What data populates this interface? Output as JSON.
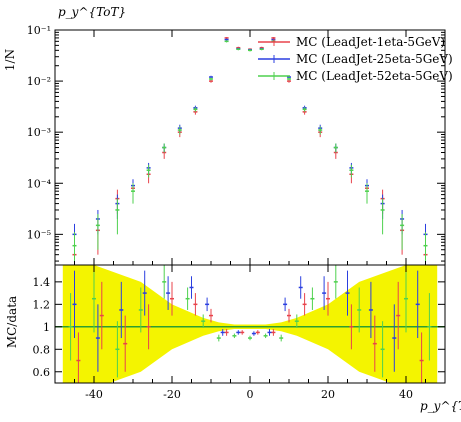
{
  "chart_data": [
    {
      "type": "scatter",
      "title": "p_y^{ToT}",
      "xlabel": "",
      "ylabel": "1/N",
      "xlim": [
        -50,
        50
      ],
      "ylim_log10": [
        -5.6,
        -1
      ],
      "y_scale": "log",
      "yticks": [
        {
          "label": "10⁻⁵",
          "value": 1e-05
        },
        {
          "label": "10⁻⁴",
          "value": 0.0001
        },
        {
          "label": "10⁻³",
          "value": 0.001
        },
        {
          "label": "10⁻²",
          "value": 0.01
        },
        {
          "label": "10⁻¹",
          "value": 0.1
        }
      ],
      "legend_position": "top-right",
      "series": [
        {
          "name": "MC (LeadJet-1eta-5GeV)",
          "color": "#e8434b",
          "x": [
            -45,
            -39,
            -34,
            -30,
            -26,
            -22,
            -18,
            -14,
            -10,
            -6,
            -3,
            0,
            3,
            6,
            10,
            14,
            18,
            22,
            26,
            30,
            34,
            39,
            45
          ],
          "y": [
            4e-06,
            1.2e-05,
            5e-05,
            8e-05,
            0.00015,
            0.0004,
            0.001,
            0.0025,
            0.01,
            0.07,
            0.045,
            0.042,
            0.045,
            0.07,
            0.01,
            0.0025,
            0.001,
            0.0004,
            0.00015,
            8e-05,
            5e-05,
            1.2e-05,
            4e-06
          ],
          "err": [
            3e-06,
            8e-06,
            2.5e-05,
            3e-05,
            5e-05,
            0.0001,
            0.0002,
            0.0003,
            0.0007,
            0.003,
            0.002,
            0.002,
            0.002,
            0.003,
            0.0007,
            0.0003,
            0.0002,
            0.0001,
            5e-05,
            3e-05,
            2.5e-05,
            8e-06,
            3e-06
          ]
        },
        {
          "name": "MC (LeadJet-25eta-5GeV)",
          "color": "#2b3fe0",
          "x": [
            -45,
            -39,
            -34,
            -30,
            -26,
            -22,
            -18,
            -14,
            -10,
            -6,
            -3,
            0,
            3,
            6,
            10,
            14,
            18,
            22,
            26,
            30,
            34,
            39,
            45
          ],
          "y": [
            1e-05,
            2e-05,
            4e-05,
            9e-05,
            0.0002,
            0.0005,
            0.0012,
            0.003,
            0.012,
            0.065,
            0.043,
            0.041,
            0.043,
            0.065,
            0.012,
            0.003,
            0.0012,
            0.0005,
            0.0002,
            9e-05,
            4e-05,
            2e-05,
            1e-05
          ],
          "err": [
            6e-06,
            1e-05,
            2e-05,
            3e-05,
            5e-05,
            0.0001,
            0.0002,
            0.0003,
            0.0007,
            0.003,
            0.002,
            0.002,
            0.002,
            0.003,
            0.0007,
            0.0003,
            0.0002,
            0.0001,
            5e-05,
            3e-05,
            2e-05,
            1e-05,
            6e-06
          ]
        },
        {
          "name": "MC (LeadJet-52eta-5GeV)",
          "color": "#4fd14f",
          "x": [
            -45,
            -39,
            -34,
            -30,
            -26,
            -22,
            -18,
            -14,
            -10,
            -6,
            -3,
            0,
            3,
            6,
            10,
            14,
            18,
            22,
            26,
            30,
            34,
            39,
            45
          ],
          "y": [
            6e-06,
            1.5e-05,
            3e-05,
            7e-05,
            0.00018,
            0.0005,
            0.0011,
            0.0028,
            0.011,
            0.06,
            0.042,
            0.04,
            0.042,
            0.06,
            0.011,
            0.0028,
            0.0011,
            0.0005,
            0.00018,
            7e-05,
            3e-05,
            1.5e-05,
            6e-06
          ],
          "err": [
            5e-06,
            1e-05,
            2e-05,
            3e-05,
            5e-05,
            0.0001,
            0.0002,
            0.0003,
            0.0007,
            0.003,
            0.002,
            0.002,
            0.002,
            0.003,
            0.0007,
            0.0003,
            0.0002,
            0.0001,
            5e-05,
            3e-05,
            2e-05,
            1e-05,
            5e-06
          ]
        }
      ]
    },
    {
      "type": "scatter",
      "title": "",
      "xlabel": "p_y^{ToT}",
      "ylabel": "MC/data",
      "xlim": [
        -50,
        50
      ],
      "ylim": [
        0.5,
        1.55
      ],
      "xticks": [
        -40,
        -20,
        0,
        20,
        40
      ],
      "yticks": [
        0.6,
        0.8,
        1,
        1.2,
        1.4
      ],
      "reference_line": {
        "y": 1,
        "color": "#2e9f2e"
      },
      "data_band": {
        "color": "#f4f400",
        "x": [
          -48,
          -44,
          -40,
          -36,
          -32,
          -28,
          -24,
          -20,
          -16,
          -12,
          -8,
          -4,
          0,
          4,
          8,
          12,
          16,
          20,
          24,
          28,
          32,
          36,
          40,
          44,
          48
        ],
        "half": [
          0.6,
          0.6,
          0.6,
          0.5,
          0.45,
          0.4,
          0.3,
          0.2,
          0.14,
          0.08,
          0.04,
          0.02,
          0.02,
          0.02,
          0.04,
          0.08,
          0.14,
          0.2,
          0.3,
          0.4,
          0.45,
          0.5,
          0.6,
          0.6,
          0.6
        ]
      },
      "series": [
        {
          "name": "MC (LeadJet-1eta-5GeV)",
          "color": "#e8434b",
          "x": [
            -44,
            -38,
            -32,
            -26,
            -20,
            -14,
            -10,
            -6,
            -2,
            2,
            6,
            10,
            14,
            20,
            26,
            32,
            38,
            44
          ],
          "y": [
            0.7,
            1.1,
            0.85,
            1.0,
            1.25,
            1.2,
            1.1,
            0.95,
            0.95,
            0.95,
            0.95,
            1.1,
            1.2,
            1.25,
            1.0,
            0.85,
            1.1,
            0.7
          ],
          "err": [
            0.25,
            0.3,
            0.25,
            0.2,
            0.15,
            0.1,
            0.06,
            0.03,
            0.02,
            0.02,
            0.03,
            0.06,
            0.1,
            0.15,
            0.2,
            0.25,
            0.3,
            0.25
          ]
        },
        {
          "name": "MC (LeadJet-25eta-5GeV)",
          "color": "#2b3fe0",
          "x": [
            -45,
            -39,
            -33,
            -27,
            -21,
            -15,
            -11,
            -7,
            -3,
            1,
            5,
            9,
            13,
            19,
            25,
            31,
            37,
            43
          ],
          "y": [
            1.2,
            0.9,
            1.15,
            1.3,
            1.3,
            1.35,
            1.2,
            0.95,
            0.95,
            0.94,
            0.95,
            1.2,
            1.35,
            1.3,
            1.3,
            1.15,
            0.9,
            1.2
          ],
          "err": [
            0.3,
            0.3,
            0.25,
            0.2,
            0.15,
            0.1,
            0.06,
            0.03,
            0.02,
            0.02,
            0.03,
            0.06,
            0.1,
            0.15,
            0.2,
            0.25,
            0.3,
            0.3
          ]
        },
        {
          "name": "MC (LeadJet-52eta-5GeV)",
          "color": "#4fd14f",
          "x": [
            -46,
            -40,
            -34,
            -28,
            -22,
            -16,
            -12,
            -8,
            -4,
            0,
            4,
            8,
            12,
            16,
            22,
            28,
            34,
            40,
            46
          ],
          "y": [
            1.0,
            1.25,
            0.8,
            1.15,
            1.4,
            1.25,
            1.05,
            0.9,
            0.92,
            0.9,
            0.92,
            0.9,
            1.05,
            1.25,
            1.4,
            1.15,
            0.8,
            1.25,
            1.0
          ],
          "err": [
            0.3,
            0.3,
            0.25,
            0.2,
            0.15,
            0.1,
            0.06,
            0.03,
            0.02,
            0.02,
            0.02,
            0.03,
            0.06,
            0.1,
            0.15,
            0.2,
            0.25,
            0.3,
            0.3
          ]
        }
      ]
    }
  ]
}
